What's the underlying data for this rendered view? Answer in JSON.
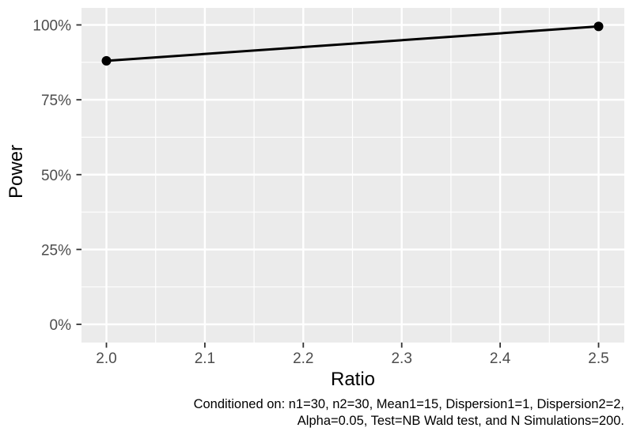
{
  "figure": {
    "background": "#ffffff",
    "panel_bg": "#ebebeb",
    "grid_color": "#ffffff",
    "tick_mark_color": "#333333",
    "tick_label_color": "#4d4d4d",
    "axis_title_color": "#000000",
    "series_color": "#000000"
  },
  "axes": {
    "x_title": "Ratio",
    "y_title": "Power"
  },
  "caption": {
    "line1": "Conditioned on: n1=30, n2=30, Mean1=15, Dispersion1=1, Dispersion2=2,",
    "line2": "Alpha=0.05, Test=NB Wald test, and N Simulations=200."
  },
  "chart_data": {
    "type": "line",
    "title": "",
    "xlabel": "Ratio",
    "ylabel": "Power",
    "x": [
      2.0,
      2.5
    ],
    "y": [
      0.88,
      0.995
    ],
    "series": [
      {
        "name": "Power",
        "x": [
          2.0,
          2.5
        ],
        "y": [
          0.88,
          0.995
        ]
      }
    ],
    "x_ticks": {
      "values": [
        2.0,
        2.1,
        2.2,
        2.3,
        2.4,
        2.5
      ],
      "labels": [
        "2.0",
        "2.1",
        "2.2",
        "2.3",
        "2.4",
        "2.5"
      ]
    },
    "y_ticks": {
      "values": [
        0,
        0.25,
        0.5,
        0.75,
        1.0
      ],
      "labels": [
        "0%",
        "25%",
        "50%",
        "75%",
        "100%"
      ]
    },
    "x_minor": [
      2.05,
      2.15,
      2.25,
      2.35,
      2.45
    ],
    "y_minor": [
      0.125,
      0.375,
      0.625,
      0.875
    ],
    "xlim": [
      1.975,
      2.525
    ],
    "ylim": [
      -0.055,
      1.06
    ],
    "grid": true,
    "legend": false,
    "marker": "point",
    "caption": "Conditioned on: n1=30, n2=30, Mean1=15, Dispersion1=1, Dispersion2=2, Alpha=0.05, Test=NB Wald test, and N Simulations=200."
  }
}
